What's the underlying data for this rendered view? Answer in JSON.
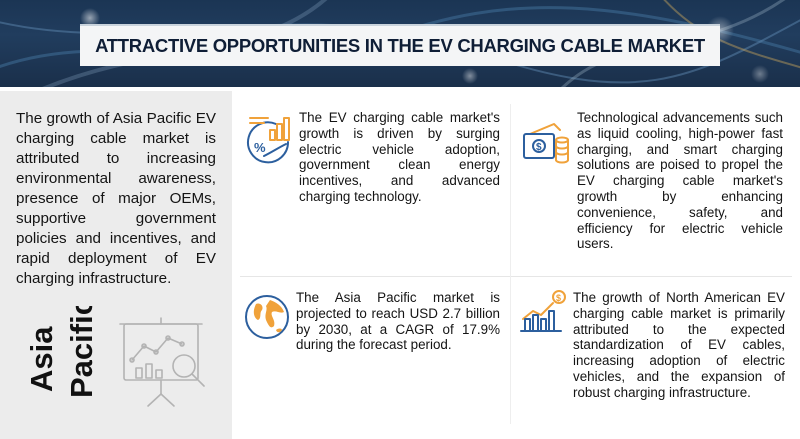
{
  "banner": {
    "title": "ATTRACTIVE OPPORTUNITIES IN THE EV CHARGING CABLE MARKET"
  },
  "left_panel": {
    "summary": "The growth of Asia Pacific EV charging cable market is attributed to increasing environmental awareness, presence of major OEMs, supportive government policies and incentives, and rapid deployment of EV charging infrastructure.",
    "region_line1": "Asia",
    "region_line2": "Pacific"
  },
  "cells": [
    {
      "icon": "percent-growth-chart-icon",
      "text": "The EV charging cable market's growth is driven by surging electric vehicle adoption, government clean energy incentives, and advanced charging technology."
    },
    {
      "icon": "money-coins-icon",
      "text": "Technological advancements such as liquid cooling, high-power fast charging, and smart charging solutions are poised to propel the EV charging cable market's growth by enhancing convenience, safety, and efficiency for electric vehicle users."
    },
    {
      "icon": "globe-icon",
      "text": "The Asia Pacific market is projected to reach USD 2.7 billion by 2030, at a CAGR of 17.9% during the forecast period."
    },
    {
      "icon": "dollar-bar-chart-icon",
      "text": "The growth of North American EV charging cable market is primarily attributed to the expected standardization of EV cables, increasing adoption of electric vehicles, and the expansion of robust charging infrastructure."
    }
  ],
  "colors": {
    "banner_bg": "#1b3554",
    "accent_orange": "#f0a23a",
    "icon_blue": "#2c5f9e",
    "left_panel_bg": "#ececec",
    "title_text": "#0f1e36"
  }
}
